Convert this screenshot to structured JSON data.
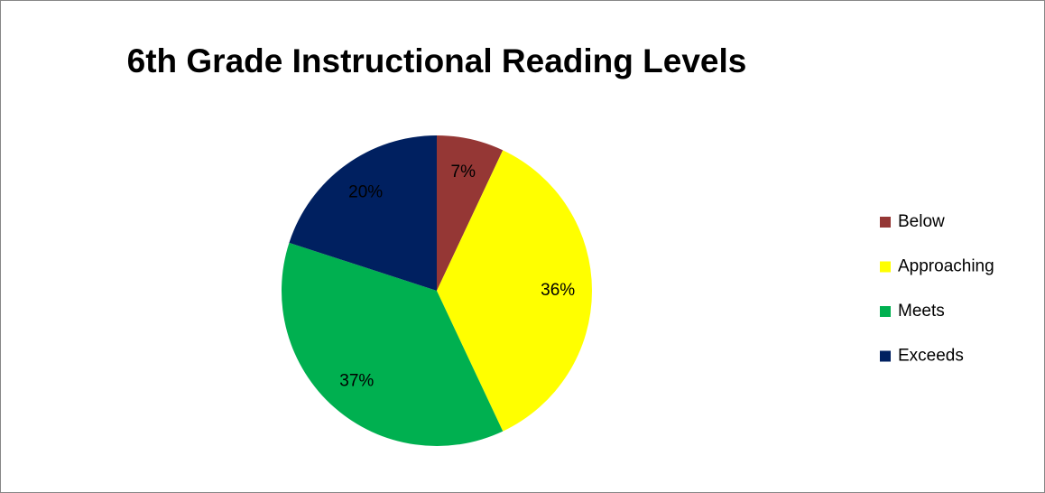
{
  "chart_data": {
    "type": "pie",
    "title": "6th Grade Instructional Reading Levels",
    "categories": [
      "Below",
      "Approaching",
      "Meets",
      "Exceeds"
    ],
    "values": [
      7,
      36,
      37,
      20
    ],
    "value_labels": [
      "7%",
      "36%",
      "37%",
      "20%"
    ],
    "colors": [
      "#953735",
      "#ffff00",
      "#00b050",
      "#002060"
    ],
    "legend": "right"
  }
}
